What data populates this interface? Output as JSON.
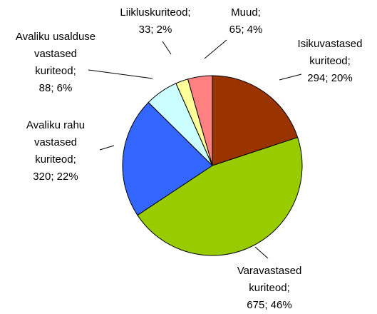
{
  "chart_data": {
    "type": "pie",
    "values": [
      294,
      675,
      320,
      88,
      33,
      65
    ],
    "value_labels": [
      [
        "Isikuvastased",
        "kuriteod;",
        "294; 20%"
      ],
      [
        "Varavastased",
        "kuriteod;",
        "675; 46%"
      ],
      [
        "Avaliku rahu",
        "vastased",
        "kuriteod;",
        "320; 22%"
      ],
      [
        "Avaliku usalduse",
        "vastased",
        "kuriteod;",
        "88; 6%"
      ],
      [
        "Liikluskuriteod;",
        "33; 2%"
      ],
      [
        "Muud;",
        "65; 4%"
      ]
    ],
    "colors": [
      "#993300",
      "#99cc00",
      "#3366ff",
      "#ccffff",
      "#ffff99",
      "#ff8080"
    ]
  }
}
